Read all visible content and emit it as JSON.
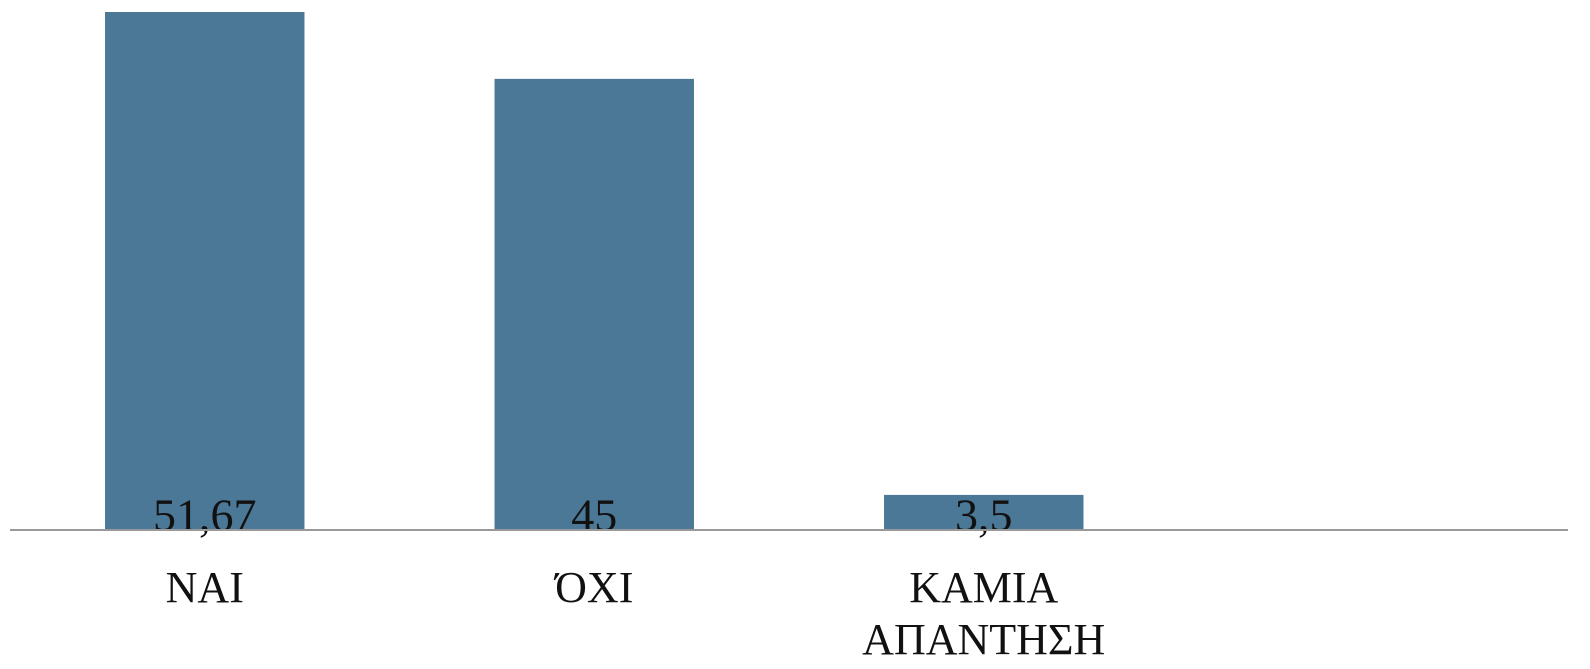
{
  "chart_data": {
    "type": "bar",
    "categories": [
      "ΝΑΙ",
      "ΌΧΙ",
      "ΚΑΜΙΑ ΑΠΑΝΤΗΣΗ",
      null
    ],
    "values": [
      51.67,
      45,
      3.5,
      null
    ],
    "value_labels": [
      "51,67",
      "45",
      "3,5",
      null
    ],
    "color": "#4a7896",
    "ylim": [
      0,
      51.67
    ]
  }
}
